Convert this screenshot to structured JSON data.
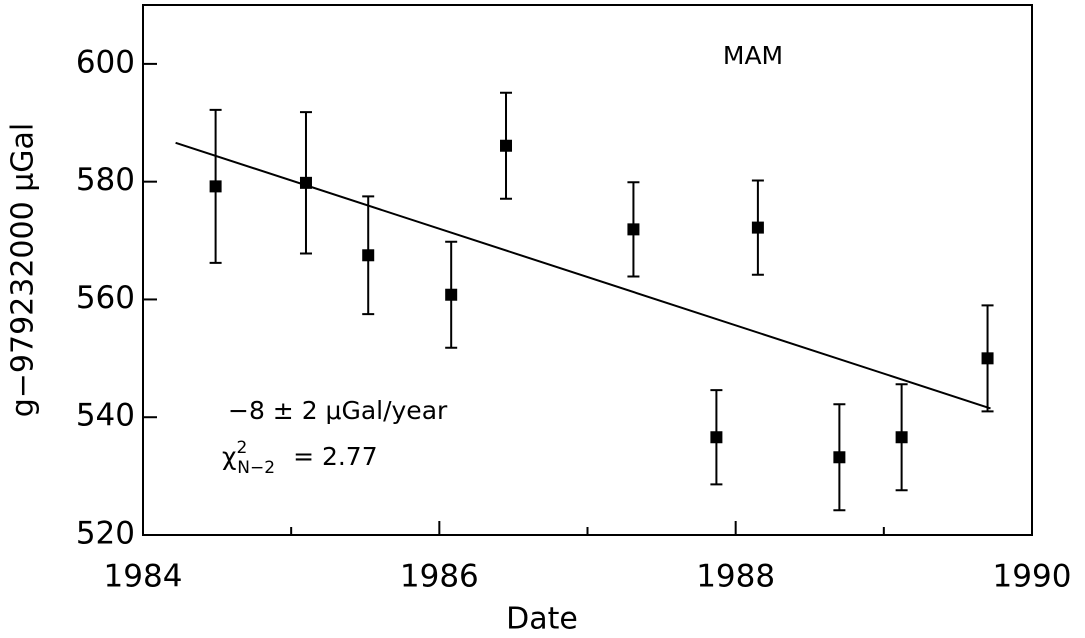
{
  "chart_data": {
    "type": "scatter",
    "x_label": "Date",
    "y_label": "g−979232000  μGal",
    "xlim": [
      1984,
      1990
    ],
    "ylim": [
      520,
      610
    ],
    "xticks": [
      1984,
      1986,
      1988,
      1990
    ],
    "xminor": [
      1985,
      1987,
      1989
    ],
    "yticks": [
      520,
      540,
      560,
      580,
      600
    ],
    "color": "#000000",
    "x": [
      1984.49,
      1985.1,
      1985.52,
      1986.08,
      1986.45,
      1987.31,
      1987.87,
      1988.15,
      1988.7,
      1989.12,
      1989.7
    ],
    "values": [
      579.2,
      579.8,
      567.5,
      560.8,
      586.1,
      571.9,
      536.6,
      572.2,
      533.2,
      536.6,
      550.0
    ],
    "errors": [
      13,
      12,
      10,
      9,
      9,
      8,
      8,
      8,
      9,
      9,
      9
    ],
    "fit": {
      "x": [
        1984.22,
        1989.72
      ],
      "values": [
        586.6,
        541.5
      ]
    },
    "annotations": {
      "label": "MAM",
      "slope": "−8 ± 2 μGal/year",
      "chi": {
        "symbol": "χ",
        "sup": "2",
        "sub": "N−2",
        "text": "=  2.77"
      }
    }
  }
}
